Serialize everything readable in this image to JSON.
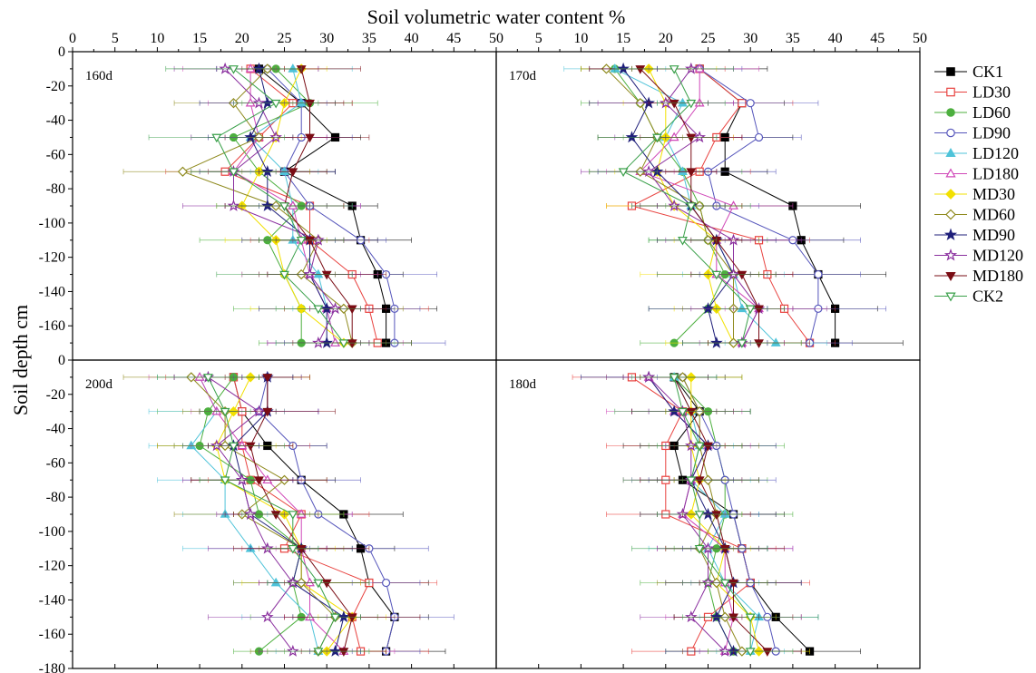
{
  "chart_data": {
    "type": "scatter",
    "title": "Soil volumetric water content %",
    "ylabel": "Soil depth cm",
    "xlim": [
      0,
      50
    ],
    "ylim": [
      -180,
      0
    ],
    "xticks": [
      "0",
      "5",
      "10",
      "15",
      "20",
      "25",
      "30",
      "35",
      "40",
      "45",
      "50"
    ],
    "xticks_right": [
      "0",
      "5",
      "10",
      "15",
      "20",
      "25",
      "30",
      "35",
      "40",
      "45",
      "50"
    ],
    "yticks_top": [
      "0",
      "-20",
      "-40",
      "-60",
      "-80",
      "-100",
      "-120",
      "-140",
      "-160"
    ],
    "yticks_bottom": [
      "0",
      "-20",
      "-40",
      "-60",
      "-80",
      "-100",
      "-120",
      "-140",
      "-160",
      "-180"
    ],
    "depths": [
      -10,
      -30,
      -50,
      -70,
      -90,
      -110,
      -130,
      -150,
      -170
    ],
    "legend_position": "right",
    "series_styles": [
      {
        "name": "CK1",
        "color": "#000000",
        "marker": "square",
        "filled": true
      },
      {
        "name": "LD30",
        "color": "#e8423f",
        "marker": "square",
        "filled": false
      },
      {
        "name": "LD60",
        "color": "#4caf3e",
        "marker": "circle",
        "filled": true
      },
      {
        "name": "LD90",
        "color": "#5555bb",
        "marker": "circle",
        "filled": false
      },
      {
        "name": "LD120",
        "color": "#4fc3d9",
        "marker": "triangle-up",
        "filled": true
      },
      {
        "name": "LD180",
        "color": "#d048b8",
        "marker": "triangle-up",
        "filled": false
      },
      {
        "name": "MD30",
        "color": "#f2e000",
        "marker": "diamond",
        "filled": true
      },
      {
        "name": "MD60",
        "color": "#8f8a1e",
        "marker": "diamond",
        "filled": false
      },
      {
        "name": "MD90",
        "color": "#1f1f7a",
        "marker": "star",
        "filled": true
      },
      {
        "name": "MD120",
        "color": "#8a2f9e",
        "marker": "star",
        "filled": false
      },
      {
        "name": "MD180",
        "color": "#7a0c14",
        "marker": "triangle-down",
        "filled": true
      },
      {
        "name": "CK2",
        "color": "#3aa04a",
        "marker": "triangle-down",
        "filled": false
      }
    ],
    "panels": [
      {
        "label": "160d",
        "series": [
          {
            "name": "CK1",
            "values": [
              22,
              27,
              31,
              25,
              33,
              34,
              36,
              37,
              37
            ]
          },
          {
            "name": "LD30",
            "values": [
              21,
              26,
              22,
              18,
              28,
              28,
              33,
              35,
              36
            ]
          },
          {
            "name": "LD60",
            "values": [
              24,
              28,
              19,
              22,
              27,
              23,
              25,
              27,
              27
            ]
          },
          {
            "name": "LD90",
            "values": [
              23,
              27,
              27,
              25,
              28,
              34,
              37,
              38,
              38
            ]
          },
          {
            "name": "LD120",
            "values": [
              26,
              27,
              21,
              25,
              26,
              26,
              29,
              30,
              31
            ]
          },
          {
            "name": "LD180",
            "values": [
              21,
              21,
              22,
              19,
              26,
              27,
              28,
              30,
              31
            ]
          },
          {
            "name": "MD30",
            "values": [
              27,
              25,
              24,
              22,
              20,
              24,
              25,
              27,
              32
            ]
          },
          {
            "name": "MD60",
            "values": [
              23,
              19,
              22,
              13,
              24,
              29,
              27,
              32,
              33
            ]
          },
          {
            "name": "MD90",
            "values": [
              22,
              23,
              21,
              23,
              23,
              28,
              28,
              30,
              30
            ]
          },
          {
            "name": "MD120",
            "values": [
              18,
              22,
              24,
              19,
              19,
              29,
              28,
              31,
              29
            ]
          },
          {
            "name": "MD180",
            "values": [
              27,
              28,
              28,
              26,
              25,
              28,
              30,
              33,
              33
            ]
          },
          {
            "name": "CK2",
            "values": [
              19,
              24,
              17,
              19,
              25,
              27,
              25,
              29,
              32
            ]
          }
        ]
      },
      {
        "label": "170d",
        "series": [
          {
            "name": "CK1",
            "values": [
              24,
              29,
              27,
              27,
              35,
              36,
              38,
              40,
              40
            ]
          },
          {
            "name": "LD30",
            "values": [
              24,
              29,
              26,
              24,
              16,
              31,
              32,
              34,
              37
            ]
          },
          {
            "name": "LD60",
            "values": [
              14,
              17,
              19,
              22,
              24,
              25,
              27,
              25,
              21
            ]
          },
          {
            "name": "LD90",
            "values": [
              24,
              30,
              31,
              25,
              26,
              35,
              38,
              38,
              37
            ]
          },
          {
            "name": "LD120",
            "values": [
              14,
              22,
              20,
              22,
              23,
              26,
              28,
              29,
              33
            ]
          },
          {
            "name": "LD180",
            "values": [
              24,
              24,
              21,
              17,
              28,
              26,
              26,
              31,
              29
            ]
          },
          {
            "name": "MD30",
            "values": [
              18,
              20,
              20,
              19,
              21,
              26,
              25,
              26,
              28
            ]
          },
          {
            "name": "MD60",
            "values": [
              13,
              17,
              19,
              17,
              24,
              25,
              28,
              28,
              28
            ]
          },
          {
            "name": "MD90",
            "values": [
              15,
              18,
              16,
              19,
              23,
              26,
              28,
              25,
              26
            ]
          },
          {
            "name": "MD120",
            "values": [
              23,
              20,
              24,
              18,
              21,
              28,
              28,
              31,
              29
            ]
          },
          {
            "name": "MD180",
            "values": [
              17,
              21,
              23,
              23,
              23,
              26,
              29,
              31,
              31
            ]
          },
          {
            "name": "CK2",
            "values": [
              21,
              23,
              19,
              15,
              23,
              22,
              26,
              30,
              29
            ]
          }
        ]
      },
      {
        "label": "200d",
        "series": [
          {
            "name": "CK1",
            "values": [
              19,
              20,
              23,
              27,
              32,
              34,
              35,
              38,
              37
            ]
          },
          {
            "name": "LD30",
            "values": [
              19,
              20,
              20,
              21,
              27,
              25,
              35,
              33,
              34
            ]
          },
          {
            "name": "LD60",
            "values": [
              19,
              16,
              15,
              21,
              22,
              27,
              26,
              27,
              22
            ]
          },
          {
            "name": "LD90",
            "values": [
              23,
              22,
              26,
              27,
              29,
              35,
              37,
              38,
              37
            ]
          },
          {
            "name": "LD120",
            "values": [
              15,
              17,
              14,
              18,
              18,
              21,
              24,
              28,
              29
            ]
          },
          {
            "name": "LD180",
            "values": [
              15,
              17,
              20,
              23,
              27,
              27,
              28,
              28,
              32
            ]
          },
          {
            "name": "MD30",
            "values": [
              21,
              19,
              17,
              18,
              25,
              27,
              27,
              33,
              30
            ]
          },
          {
            "name": "MD60",
            "values": [
              14,
              18,
              18,
              25,
              20,
              27,
              27,
              31,
              29
            ]
          },
          {
            "name": "MD90",
            "values": [
              23,
              23,
              19,
              20,
              21,
              27,
              26,
              32,
              31
            ]
          },
          {
            "name": "MD120",
            "values": [
              16,
              22,
              17,
              20,
              21,
              23,
              26,
              23,
              26
            ]
          },
          {
            "name": "MD180",
            "values": [
              23,
              23,
              21,
              22,
              24,
              27,
              30,
              33,
              32
            ]
          },
          {
            "name": "CK2",
            "values": [
              16,
              18,
              19,
              18,
              26,
              26,
              29,
              31,
              29
            ]
          }
        ]
      },
      {
        "label": "180d",
        "series": [
          {
            "name": "CK1",
            "values": [
              21,
              24,
              21,
              22,
              28,
              29,
              30,
              33,
              37
            ]
          },
          {
            "name": "LD30",
            "values": [
              16,
              22,
              20,
              20,
              20,
              29,
              30,
              25,
              23
            ]
          },
          {
            "name": "LD60",
            "values": [
              21,
              25,
              26,
              27,
              27,
              26,
              25,
              26,
              28
            ]
          },
          {
            "name": "LD90",
            "values": [
              22,
              24,
              26,
              27,
              28,
              29,
              30,
              32,
              33
            ]
          },
          {
            "name": "LD120",
            "values": [
              21,
              23,
              24,
              23,
              27,
              25,
              27,
              31,
              30
            ]
          },
          {
            "name": "LD180",
            "values": [
              18,
              21,
              25,
              23,
              22,
              27,
              27,
              28,
              27
            ]
          },
          {
            "name": "MD30",
            "values": [
              23,
              23,
              23,
              24,
              23,
              27,
              26,
              30,
              31
            ]
          },
          {
            "name": "MD60",
            "values": [
              22,
              24,
              24,
              25,
              26,
              24,
              26,
              27,
              29
            ]
          },
          {
            "name": "MD90",
            "values": [
              18,
              21,
              25,
              23,
              25,
              27,
              28,
              26,
              28
            ]
          },
          {
            "name": "MD120",
            "values": [
              18,
              22,
              23,
              23,
              22,
              25,
              25,
              23,
              27
            ]
          },
          {
            "name": "MD180",
            "values": [
              21,
              23,
              25,
              24,
              26,
              27,
              28,
              28,
              32
            ]
          },
          {
            "name": "CK2",
            "values": [
              21,
              22,
              24,
              23,
              24,
              24,
              27,
              30,
              30
            ]
          }
        ]
      }
    ]
  }
}
